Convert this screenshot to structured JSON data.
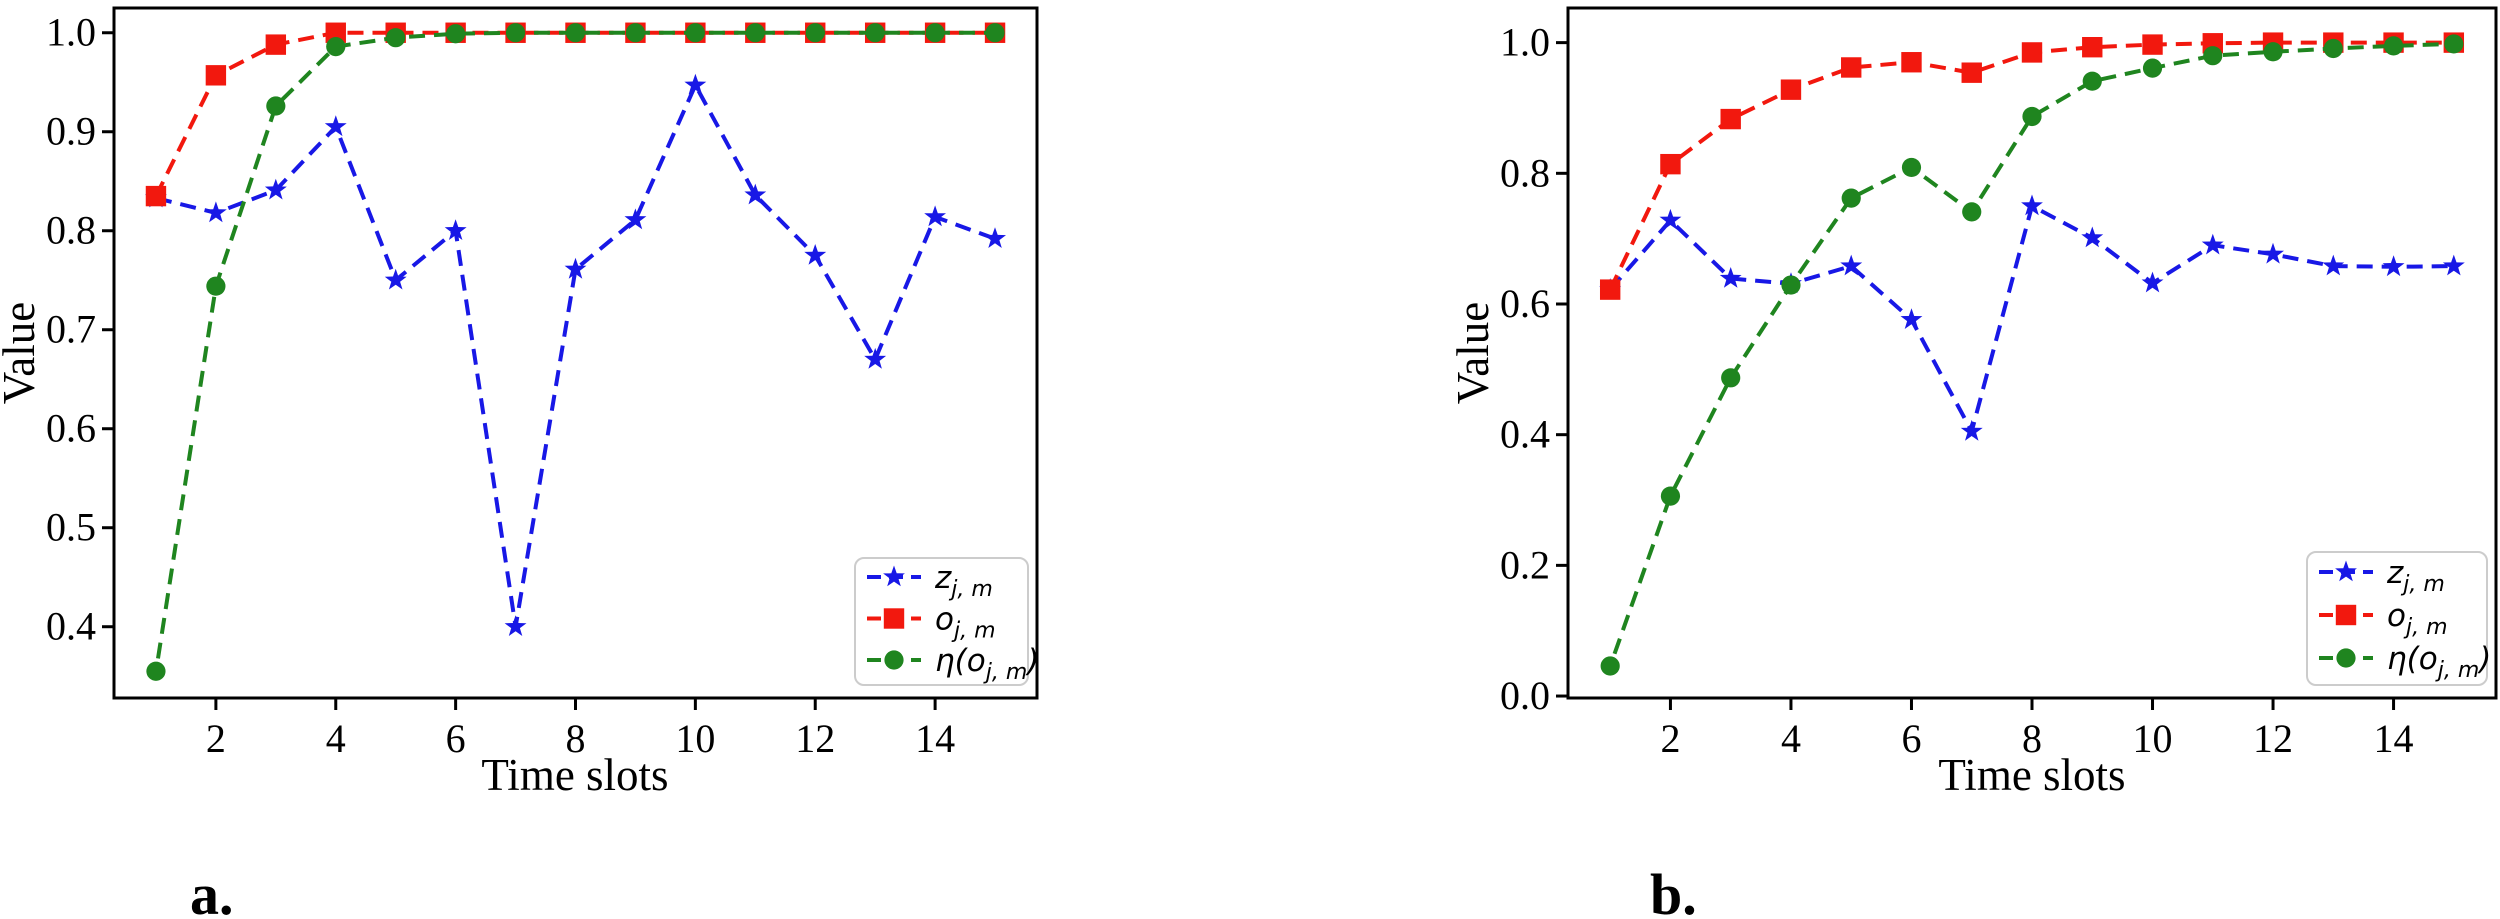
{
  "figure": {
    "background": "#ffffff"
  },
  "colors": {
    "z_blue": "#1818e6",
    "o_red": "#f2180e",
    "eta_green": "#1f851f",
    "axis_black": "#000000",
    "legend_border": "#cccccc"
  },
  "chart_data": [
    {
      "id": "a",
      "caption": "a.",
      "type": "line",
      "xlabel": "Time slots",
      "ylabel": "Value",
      "grid": false,
      "legend_position": "lower right",
      "x": [
        1,
        2,
        3,
        4,
        5,
        6,
        7,
        8,
        9,
        10,
        11,
        12,
        13,
        14,
        15
      ],
      "xlim": [
        0.3,
        15.7
      ],
      "ylim": [
        0.328,
        1.025
      ],
      "xtick_values": [
        2,
        4,
        6,
        8,
        10,
        12,
        14
      ],
      "xtick_labels": [
        "2",
        "4",
        "6",
        "8",
        "10",
        "12",
        "14"
      ],
      "ytick_values": [
        0.4,
        0.5,
        0.6,
        0.7,
        0.8,
        0.9,
        1.0
      ],
      "ytick_labels": [
        "0.4",
        "0.5",
        "0.6",
        "0.7",
        "0.8",
        "0.9",
        "1.0"
      ],
      "series": [
        {
          "key": "z",
          "label": {
            "base": "z",
            "sub": "j, m",
            "suffix": ""
          },
          "color": "#1818e6",
          "marker": "star",
          "linestyle": "dashed",
          "values": [
            0.833,
            0.818,
            0.841,
            0.905,
            0.75,
            0.8,
            0.4,
            0.761,
            0.811,
            0.947,
            0.836,
            0.775,
            0.67,
            0.814,
            0.792
          ]
        },
        {
          "key": "o",
          "label": {
            "base": "o",
            "sub": "j, m",
            "suffix": ""
          },
          "color": "#f2180e",
          "marker": "square",
          "linestyle": "dashed",
          "values": [
            0.835,
            0.957,
            0.988,
            1.0,
            1.0,
            1.0,
            1.0,
            1.0,
            1.0,
            1.0,
            1.0,
            1.0,
            1.0,
            1.0,
            1.0
          ]
        },
        {
          "key": "eta",
          "label": {
            "base": "η(o",
            "sub": "j, m",
            "suffix": ")"
          },
          "color": "#1f851f",
          "marker": "circle",
          "linestyle": "dashed",
          "values": [
            0.355,
            0.744,
            0.926,
            0.986,
            0.995,
            0.999,
            1.0,
            1.0,
            1.0,
            1.0,
            1.0,
            1.0,
            1.0,
            1.0,
            1.0
          ]
        }
      ]
    },
    {
      "id": "b",
      "caption": "b.",
      "type": "line",
      "xlabel": "Time slots",
      "ylabel": "Value",
      "grid": false,
      "legend_position": "lower right",
      "x": [
        1,
        2,
        3,
        4,
        5,
        6,
        7,
        8,
        9,
        10,
        11,
        12,
        13,
        14,
        15
      ],
      "xlim": [
        0.3,
        15.7
      ],
      "ylim": [
        -0.003,
        1.053
      ],
      "xtick_values": [
        2,
        4,
        6,
        8,
        10,
        12,
        14
      ],
      "xtick_labels": [
        "2",
        "4",
        "6",
        "8",
        "10",
        "12",
        "14"
      ],
      "ytick_values": [
        0.0,
        0.2,
        0.4,
        0.6,
        0.8,
        1.0
      ],
      "ytick_labels": [
        "0.0",
        "0.2",
        "0.4",
        "0.6",
        "0.8",
        "1.0"
      ],
      "series": [
        {
          "key": "z",
          "label": {
            "base": "z",
            "sub": "j, m",
            "suffix": ""
          },
          "color": "#1818e6",
          "marker": "star",
          "linestyle": "dashed",
          "values": [
            0.622,
            0.728,
            0.639,
            0.631,
            0.658,
            0.576,
            0.405,
            0.75,
            0.701,
            0.632,
            0.69,
            0.676,
            0.658,
            0.657,
            0.658
          ]
        },
        {
          "key": "o",
          "label": {
            "base": "o",
            "sub": "j, m",
            "suffix": ""
          },
          "color": "#f2180e",
          "marker": "square",
          "linestyle": "dashed",
          "values": [
            0.622,
            0.814,
            0.883,
            0.928,
            0.962,
            0.97,
            0.954,
            0.985,
            0.993,
            0.997,
            0.999,
            1.0,
            1.0,
            1.0,
            1.0
          ]
        },
        {
          "key": "eta",
          "label": {
            "base": "η(o",
            "sub": "j, m",
            "suffix": ")"
          },
          "color": "#1f851f",
          "marker": "circle",
          "linestyle": "dashed",
          "values": [
            0.046,
            0.306,
            0.487,
            0.629,
            0.762,
            0.809,
            0.741,
            0.887,
            0.941,
            0.961,
            0.98,
            0.986,
            0.991,
            0.995,
            0.998
          ]
        }
      ]
    }
  ]
}
